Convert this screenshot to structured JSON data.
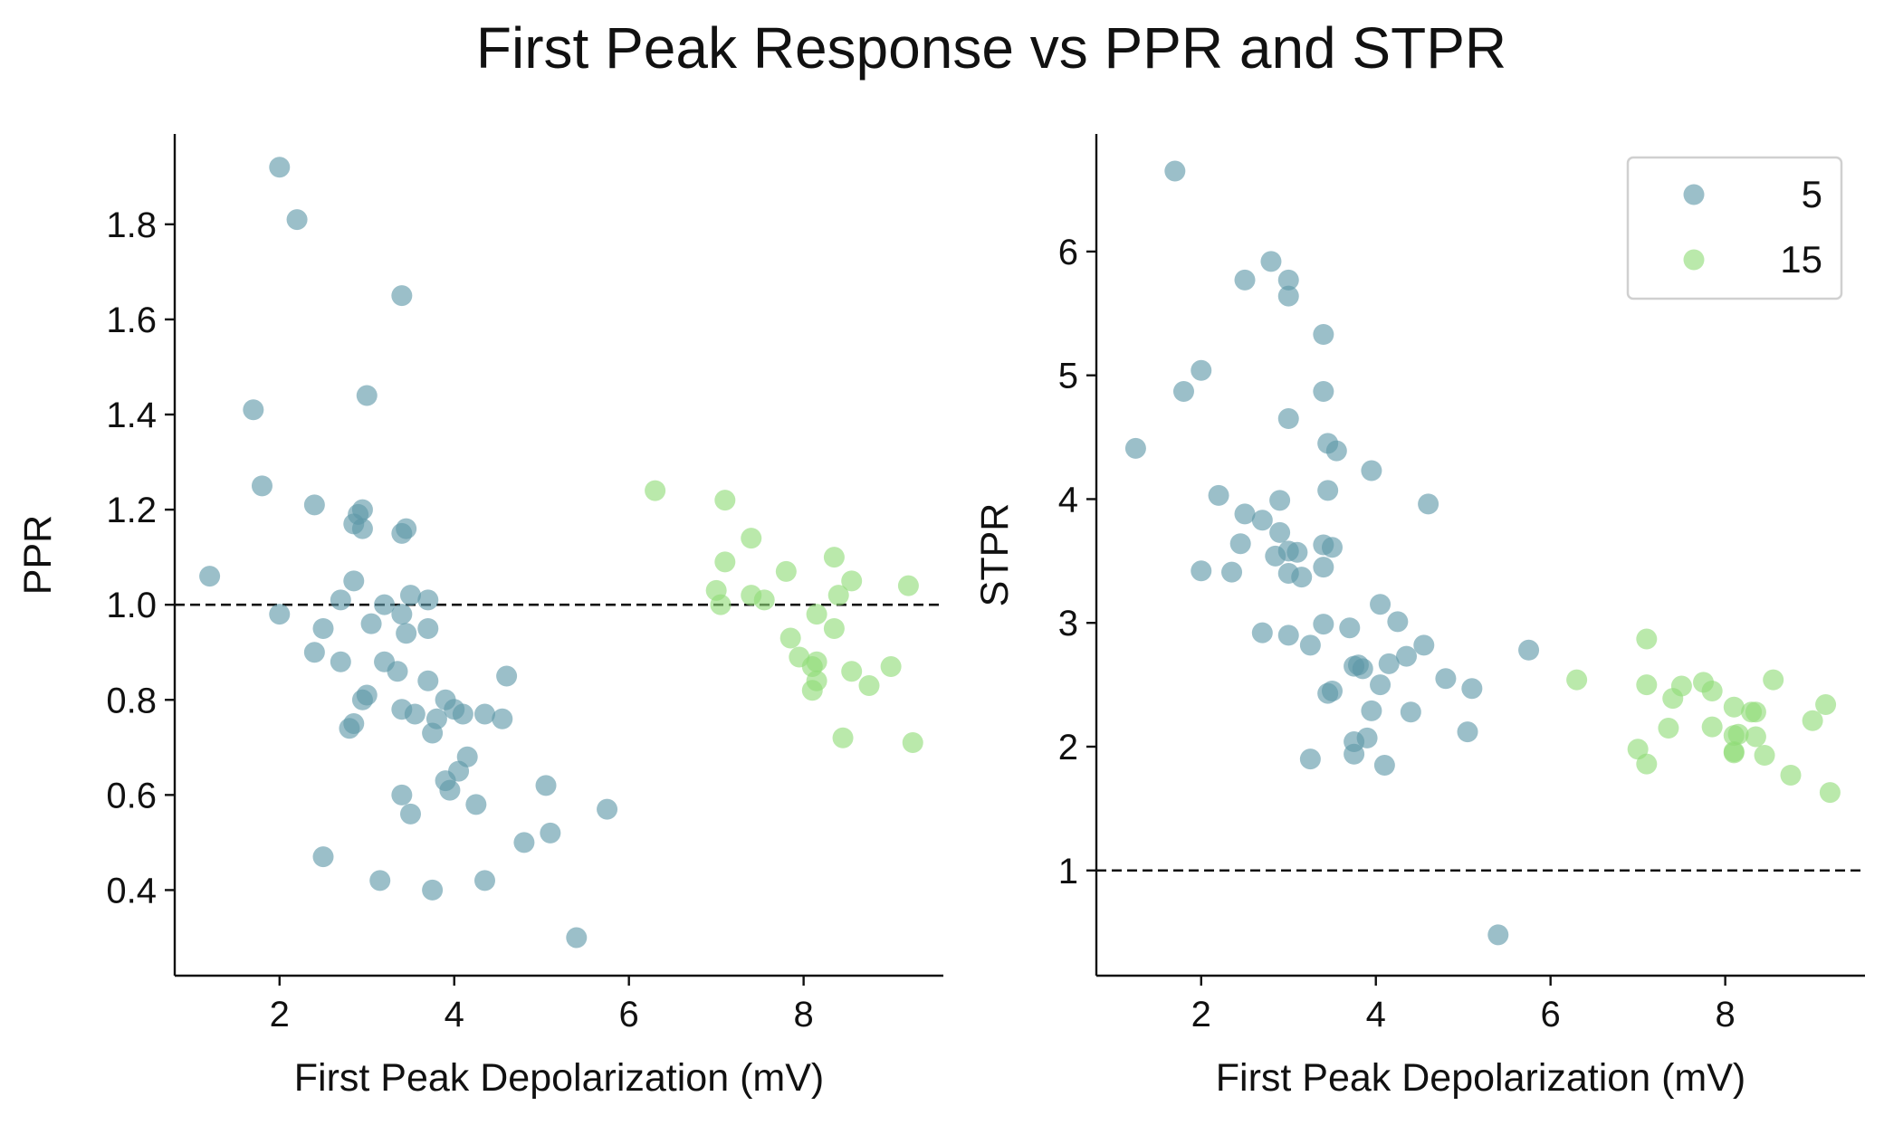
{
  "figure": {
    "title": "First Peak Response vs PPR and STPR"
  },
  "colors": {
    "series_5": "#5e97a8",
    "series_15": "#8fdc78",
    "axis": "#111111",
    "reference_line": "#111111"
  },
  "chart_data": [
    {
      "type": "scatter",
      "xlabel": "First Peak Depolarization (mV)",
      "ylabel": "PPR",
      "xlim": [
        0.8,
        9.6
      ],
      "ylim": [
        0.22,
        1.99
      ],
      "xticks": [
        2,
        4,
        6,
        8
      ],
      "yticks": [
        0.4,
        0.6,
        0.8,
        1.0,
        1.2,
        1.4,
        1.6,
        1.8
      ],
      "reference_line": {
        "y": 1.0,
        "style": "dashed"
      },
      "grid": false,
      "legend": null,
      "series": [
        {
          "name": "5",
          "color": "#5e97a8",
          "points": [
            [
              2.0,
              1.92
            ],
            [
              2.2,
              1.81
            ],
            [
              3.4,
              1.65
            ],
            [
              1.7,
              1.41
            ],
            [
              3.0,
              1.44
            ],
            [
              1.8,
              1.25
            ],
            [
              2.4,
              1.21
            ],
            [
              2.9,
              1.19
            ],
            [
              2.95,
              1.2
            ],
            [
              2.85,
              1.17
            ],
            [
              2.95,
              1.16
            ],
            [
              3.4,
              1.15
            ],
            [
              3.45,
              1.16
            ],
            [
              1.2,
              1.06
            ],
            [
              2.85,
              1.05
            ],
            [
              2.7,
              1.01
            ],
            [
              3.5,
              1.02
            ],
            [
              3.7,
              1.01
            ],
            [
              3.2,
              1.0
            ],
            [
              2.0,
              0.98
            ],
            [
              3.4,
              0.98
            ],
            [
              2.5,
              0.95
            ],
            [
              3.05,
              0.96
            ],
            [
              3.7,
              0.95
            ],
            [
              3.45,
              0.94
            ],
            [
              2.4,
              0.9
            ],
            [
              2.7,
              0.88
            ],
            [
              3.2,
              0.88
            ],
            [
              3.35,
              0.86
            ],
            [
              3.7,
              0.84
            ],
            [
              4.6,
              0.85
            ],
            [
              3.0,
              0.81
            ],
            [
              2.95,
              0.8
            ],
            [
              3.9,
              0.8
            ],
            [
              4.0,
              0.78
            ],
            [
              3.4,
              0.78
            ],
            [
              3.55,
              0.77
            ],
            [
              4.1,
              0.77
            ],
            [
              4.35,
              0.77
            ],
            [
              4.55,
              0.76
            ],
            [
              3.8,
              0.76
            ],
            [
              2.8,
              0.74
            ],
            [
              2.85,
              0.75
            ],
            [
              3.75,
              0.73
            ],
            [
              4.15,
              0.68
            ],
            [
              4.05,
              0.65
            ],
            [
              3.9,
              0.63
            ],
            [
              3.95,
              0.61
            ],
            [
              3.4,
              0.6
            ],
            [
              4.25,
              0.58
            ],
            [
              5.05,
              0.62
            ],
            [
              5.75,
              0.57
            ],
            [
              3.5,
              0.56
            ],
            [
              5.1,
              0.52
            ],
            [
              4.8,
              0.5
            ],
            [
              2.5,
              0.47
            ],
            [
              3.15,
              0.42
            ],
            [
              4.35,
              0.42
            ],
            [
              3.75,
              0.4
            ],
            [
              5.4,
              0.3
            ]
          ]
        },
        {
          "name": "15",
          "color": "#8fdc78",
          "points": [
            [
              6.3,
              1.24
            ],
            [
              7.1,
              1.22
            ],
            [
              7.4,
              1.14
            ],
            [
              7.1,
              1.09
            ],
            [
              7.8,
              1.07
            ],
            [
              8.35,
              1.1
            ],
            [
              8.55,
              1.05
            ],
            [
              9.2,
              1.04
            ],
            [
              7.0,
              1.03
            ],
            [
              7.05,
              1.0
            ],
            [
              7.4,
              1.02
            ],
            [
              7.55,
              1.01
            ],
            [
              8.4,
              1.02
            ],
            [
              8.15,
              0.98
            ],
            [
              7.85,
              0.93
            ],
            [
              8.35,
              0.95
            ],
            [
              7.95,
              0.89
            ],
            [
              8.15,
              0.88
            ],
            [
              8.1,
              0.87
            ],
            [
              8.55,
              0.86
            ],
            [
              9.0,
              0.87
            ],
            [
              8.15,
              0.84
            ],
            [
              8.75,
              0.83
            ],
            [
              8.1,
              0.82
            ],
            [
              8.45,
              0.72
            ],
            [
              9.25,
              0.71
            ]
          ]
        }
      ]
    },
    {
      "type": "scatter",
      "xlabel": "First Peak Depolarization (mV)",
      "ylabel": "STPR",
      "xlim": [
        0.8,
        9.6
      ],
      "ylim": [
        0.15,
        6.95
      ],
      "xticks": [
        2,
        4,
        6,
        8
      ],
      "yticks": [
        1,
        2,
        3,
        4,
        5,
        6
      ],
      "reference_line": {
        "y": 1.0,
        "style": "dashed"
      },
      "grid": false,
      "legend": {
        "placement": "top-right",
        "entries": [
          "5",
          "15"
        ]
      },
      "series": [
        {
          "name": "5",
          "color": "#5e97a8",
          "points": [
            [
              1.7,
              6.65
            ],
            [
              2.8,
              5.92
            ],
            [
              2.5,
              5.77
            ],
            [
              3.0,
              5.77
            ],
            [
              3.0,
              5.64
            ],
            [
              3.4,
              5.33
            ],
            [
              2.0,
              5.04
            ],
            [
              1.8,
              4.87
            ],
            [
              3.4,
              4.87
            ],
            [
              3.0,
              4.65
            ],
            [
              3.45,
              4.45
            ],
            [
              3.55,
              4.39
            ],
            [
              1.25,
              4.41
            ],
            [
              3.95,
              4.23
            ],
            [
              3.45,
              4.07
            ],
            [
              2.2,
              4.03
            ],
            [
              2.9,
              3.99
            ],
            [
              4.6,
              3.96
            ],
            [
              2.5,
              3.88
            ],
            [
              2.7,
              3.83
            ],
            [
              2.9,
              3.73
            ],
            [
              2.45,
              3.64
            ],
            [
              3.4,
              3.63
            ],
            [
              3.5,
              3.61
            ],
            [
              2.85,
              3.54
            ],
            [
              3.0,
              3.58
            ],
            [
              3.1,
              3.57
            ],
            [
              2.0,
              3.42
            ],
            [
              2.35,
              3.41
            ],
            [
              3.0,
              3.4
            ],
            [
              3.4,
              3.45
            ],
            [
              3.15,
              3.37
            ],
            [
              4.05,
              3.15
            ],
            [
              4.25,
              3.01
            ],
            [
              3.4,
              2.99
            ],
            [
              3.7,
              2.96
            ],
            [
              2.7,
              2.92
            ],
            [
              3.0,
              2.9
            ],
            [
              3.25,
              2.82
            ],
            [
              4.55,
              2.82
            ],
            [
              5.75,
              2.78
            ],
            [
              4.35,
              2.73
            ],
            [
              4.15,
              2.67
            ],
            [
              3.75,
              2.65
            ],
            [
              3.8,
              2.66
            ],
            [
              3.85,
              2.63
            ],
            [
              4.8,
              2.55
            ],
            [
              4.05,
              2.5
            ],
            [
              5.1,
              2.47
            ],
            [
              3.5,
              2.45
            ],
            [
              3.45,
              2.43
            ],
            [
              3.95,
              2.29
            ],
            [
              4.4,
              2.28
            ],
            [
              5.05,
              2.12
            ],
            [
              3.75,
              2.04
            ],
            [
              3.9,
              2.07
            ],
            [
              3.75,
              1.94
            ],
            [
              3.25,
              1.9
            ],
            [
              4.1,
              1.85
            ],
            [
              5.4,
              0.48
            ]
          ]
        },
        {
          "name": "15",
          "color": "#8fdc78",
          "points": [
            [
              7.1,
              2.87
            ],
            [
              6.3,
              2.54
            ],
            [
              8.55,
              2.54
            ],
            [
              7.75,
              2.52
            ],
            [
              7.1,
              2.5
            ],
            [
              7.5,
              2.49
            ],
            [
              7.85,
              2.45
            ],
            [
              7.4,
              2.39
            ],
            [
              9.15,
              2.34
            ],
            [
              8.1,
              2.32
            ],
            [
              8.3,
              2.28
            ],
            [
              8.35,
              2.28
            ],
            [
              9.0,
              2.21
            ],
            [
              7.35,
              2.15
            ],
            [
              7.85,
              2.16
            ],
            [
              8.15,
              2.1
            ],
            [
              8.1,
              2.09
            ],
            [
              8.35,
              2.08
            ],
            [
              7.0,
              1.98
            ],
            [
              8.1,
              1.96
            ],
            [
              8.1,
              1.95
            ],
            [
              8.45,
              1.93
            ],
            [
              7.1,
              1.86
            ],
            [
              8.75,
              1.77
            ],
            [
              9.2,
              1.63
            ]
          ]
        }
      ]
    }
  ]
}
